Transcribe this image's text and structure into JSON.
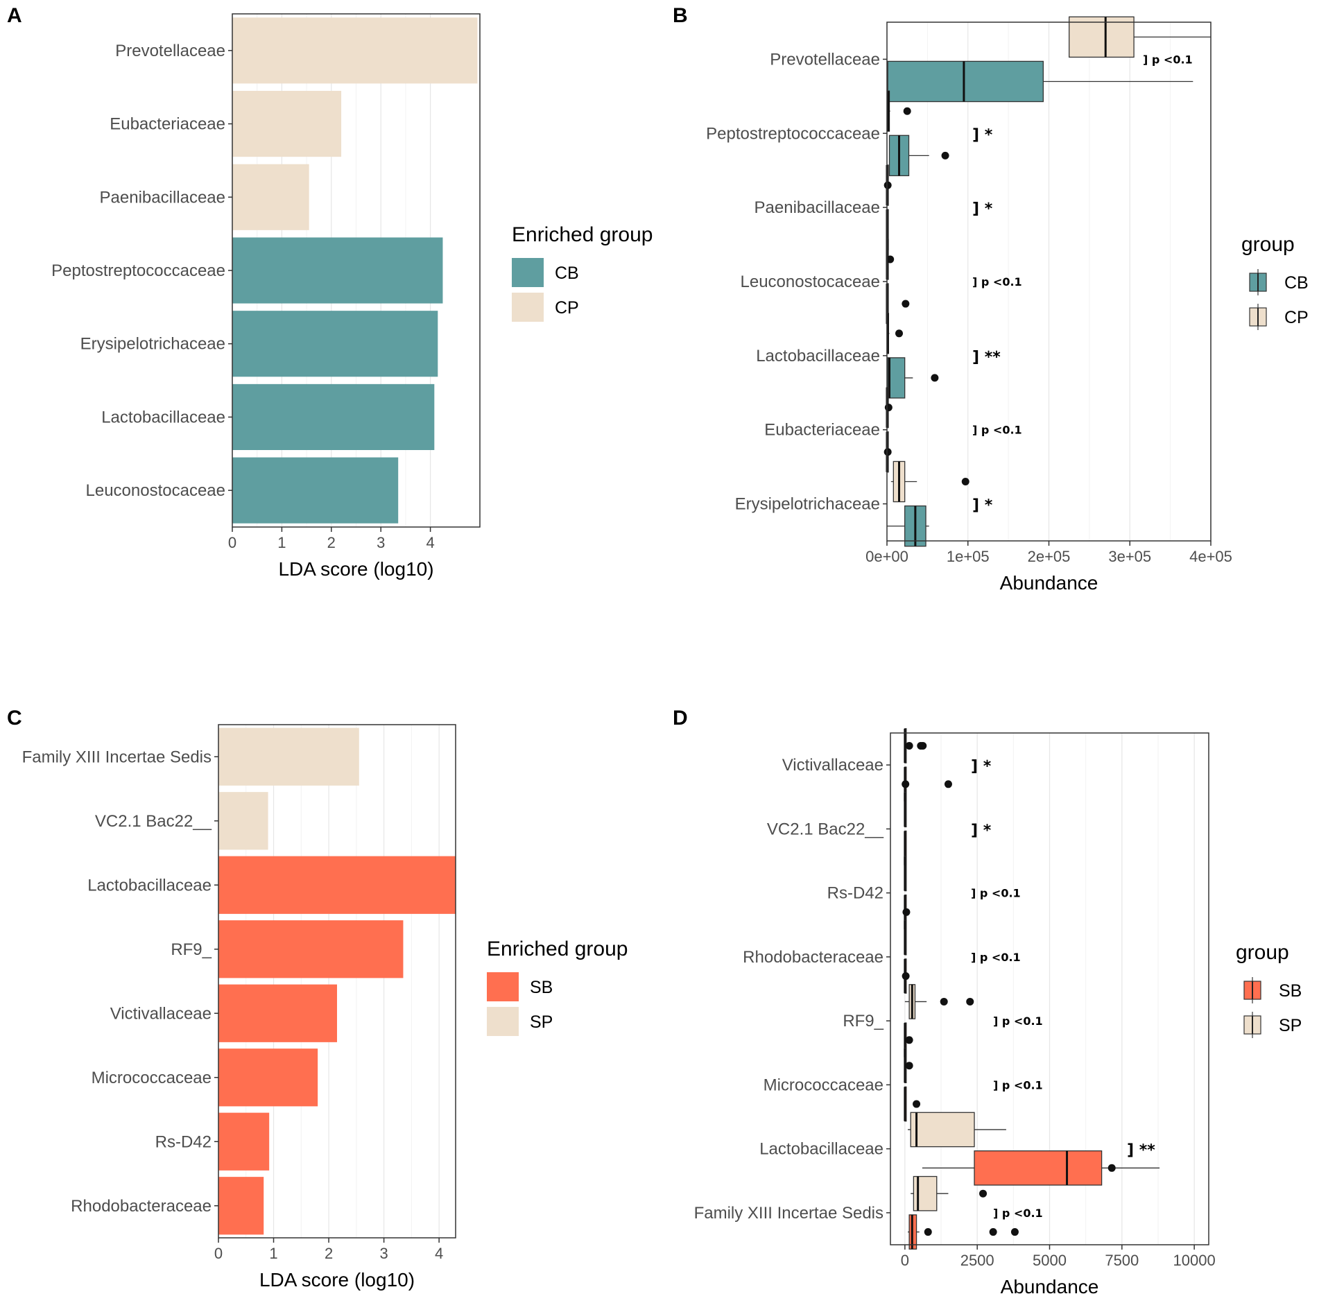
{
  "colors": {
    "CB": "#5f9ea0",
    "CP": "#eedfcc",
    "SB": "#ff6f50",
    "SP": "#eedfcc"
  },
  "chart_data": [
    {
      "panel": "A",
      "type": "bar",
      "orientation": "horizontal",
      "xlabel": "LDA score (log10)",
      "xlim": [
        0,
        5
      ],
      "xticks": [
        0,
        1,
        2,
        3,
        4
      ],
      "legend": {
        "title": "Enriched group",
        "entries": [
          "CB",
          "CP"
        ]
      },
      "categories": [
        "Prevotellaceae",
        "Eubacteriaceae",
        "Paenibacillaceae",
        "Peptostreptococcaceae",
        "Erysipelotrichaceae",
        "Lactobacillaceae",
        "Leuconostocaceae"
      ],
      "values": [
        4.95,
        2.2,
        1.55,
        4.25,
        4.15,
        4.08,
        3.35
      ],
      "groups": [
        "CP",
        "CP",
        "CP",
        "CB",
        "CB",
        "CB",
        "CB"
      ]
    },
    {
      "panel": "B",
      "type": "box",
      "orientation": "horizontal",
      "xlabel": "Abundance",
      "xlim": [
        0,
        400000
      ],
      "xticks": [
        0,
        100000,
        200000,
        300000,
        400000
      ],
      "xtick_labels": [
        "0e+00",
        "1e+05",
        "2e+05",
        "3e+05",
        "4e+05"
      ],
      "legend": {
        "title": "group",
        "entries": [
          "CB",
          "CP"
        ]
      },
      "categories": [
        "Prevotellaceae",
        "Peptostreptococcaceae",
        "Paenibacillaceae",
        "Leuconostocaceae",
        "Lactobacillaceae",
        "Eubacteriaceae",
        "Erysipelotrichaceae"
      ],
      "significance": [
        "] p <0.1",
        "] *",
        "] *",
        "] p <0.1",
        "] **",
        "] p <0.1",
        "] *"
      ],
      "boxes": [
        {
          "cat": 0,
          "group": "CP",
          "whislo": 225000,
          "q1": 225000,
          "med": 270000,
          "q3": 305000,
          "whishi": 400000,
          "fliers": []
        },
        {
          "cat": 0,
          "group": "CB",
          "whislo": 0,
          "q1": 1000,
          "med": 95000,
          "q3": 193000,
          "whishi": 378000,
          "fliers": []
        },
        {
          "cat": 1,
          "group": "CP",
          "whislo": 0,
          "q1": 1000,
          "med": 2000,
          "q3": 3000,
          "whishi": 4000,
          "fliers": [
            25000
          ]
        },
        {
          "cat": 1,
          "group": "CB",
          "whislo": 3000,
          "q1": 3000,
          "med": 15000,
          "q3": 27000,
          "whishi": 52000,
          "fliers": [
            72000
          ]
        },
        {
          "cat": 2,
          "group": "CP",
          "whislo": 0,
          "q1": 0,
          "med": 0,
          "q3": 0,
          "whishi": 0,
          "fliers": [
            1000
          ]
        },
        {
          "cat": 2,
          "group": "CB",
          "whislo": 0,
          "q1": 0,
          "med": 0,
          "q3": 0,
          "whishi": 0,
          "fliers": []
        },
        {
          "cat": 3,
          "group": "CP",
          "whislo": 0,
          "q1": 0,
          "med": 0,
          "q3": 0,
          "whishi": 0,
          "fliers": [
            4000
          ]
        },
        {
          "cat": 3,
          "group": "CB",
          "whislo": 0,
          "q1": 0,
          "med": 0,
          "q3": 0,
          "whishi": 0,
          "fliers": [
            23000
          ]
        },
        {
          "cat": 4,
          "group": "CP",
          "whislo": 0,
          "q1": 0,
          "med": 1000,
          "q3": 2000,
          "whishi": 3000,
          "fliers": [
            15000
          ]
        },
        {
          "cat": 4,
          "group": "CB",
          "whislo": 0,
          "q1": 1000,
          "med": 3000,
          "q3": 22000,
          "whishi": 32000,
          "fliers": [
            59000
          ]
        },
        {
          "cat": 5,
          "group": "CP",
          "whislo": 0,
          "q1": 0,
          "med": 0,
          "q3": 0,
          "whishi": 0,
          "fliers": [
            2000
          ]
        },
        {
          "cat": 5,
          "group": "CB",
          "whislo": 0,
          "q1": 0,
          "med": 0,
          "q3": 0,
          "whishi": 0,
          "fliers": [
            1000
          ]
        },
        {
          "cat": 6,
          "group": "CP",
          "whislo": 5000,
          "q1": 8000,
          "med": 15000,
          "q3": 22000,
          "whishi": 37000,
          "fliers": [
            97000
          ]
        },
        {
          "cat": 6,
          "group": "CB",
          "whislo": 0,
          "q1": 22000,
          "med": 35000,
          "q3": 48000,
          "whishi": 52000,
          "fliers": []
        }
      ]
    },
    {
      "panel": "C",
      "type": "bar",
      "orientation": "horizontal",
      "xlabel": "LDA score (log10)",
      "xlim": [
        0,
        4.3
      ],
      "xticks": [
        0,
        1,
        2,
        3,
        4
      ],
      "legend": {
        "title": "Enriched group",
        "entries": [
          "SB",
          "SP"
        ]
      },
      "categories": [
        "Family XIII Incertae Sedis",
        "VC2.1 Bac22__",
        "Lactobacillaceae",
        "RF9_",
        "Victivallaceae",
        "Micrococcaceae",
        "Rs-D42",
        "Rhodobacteraceae"
      ],
      "values": [
        2.55,
        0.9,
        4.3,
        3.35,
        2.15,
        1.8,
        0.92,
        0.82
      ],
      "groups": [
        "SP",
        "SP",
        "SB",
        "SB",
        "SB",
        "SB",
        "SB",
        "SB"
      ]
    },
    {
      "panel": "D",
      "type": "box",
      "orientation": "horizontal",
      "xlabel": "Abundance",
      "xlim": [
        -500,
        10500
      ],
      "xticks": [
        0,
        2500,
        5000,
        7500,
        10000
      ],
      "xtick_labels": [
        "0",
        "2500",
        "5000",
        "7500",
        "10000"
      ],
      "legend": {
        "title": "group",
        "entries": [
          "SB",
          "SP"
        ]
      },
      "categories": [
        "Victivallaceae",
        "VC2.1 Bac22__",
        "Rs-D42",
        "Rhodobacteraceae",
        "RF9_",
        "Micrococcaceae",
        "Lactobacillaceae",
        "Family XIII Incertae Sedis"
      ],
      "significance": [
        "] *",
        "] *",
        "] p <0.1",
        "] p <0.1",
        "] p <0.1",
        "] p <0.1",
        "] **",
        "] p <0.1"
      ],
      "boxes": [
        {
          "cat": 0,
          "group": "SP",
          "whislo": 0,
          "q1": 0,
          "med": 0,
          "q3": 0,
          "whishi": 0,
          "fliers": [
            150,
            550,
            620
          ]
        },
        {
          "cat": 0,
          "group": "SB",
          "whislo": 0,
          "q1": 0,
          "med": 0,
          "q3": 0,
          "whishi": 0,
          "fliers": [
            20,
            1500
          ]
        },
        {
          "cat": 1,
          "group": "SP",
          "whislo": 0,
          "q1": 0,
          "med": 0,
          "q3": 0,
          "whishi": 0,
          "fliers": []
        },
        {
          "cat": 1,
          "group": "SB",
          "whislo": 0,
          "q1": 0,
          "med": 0,
          "q3": 0,
          "whishi": 0,
          "fliers": []
        },
        {
          "cat": 2,
          "group": "SP",
          "whislo": 0,
          "q1": 0,
          "med": 0,
          "q3": 0,
          "whishi": 0,
          "fliers": []
        },
        {
          "cat": 2,
          "group": "SB",
          "whislo": 0,
          "q1": 0,
          "med": 0,
          "q3": 0,
          "whishi": 0,
          "fliers": [
            50
          ]
        },
        {
          "cat": 3,
          "group": "SP",
          "whislo": 0,
          "q1": 0,
          "med": 0,
          "q3": 0,
          "whishi": 0,
          "fliers": []
        },
        {
          "cat": 3,
          "group": "SB",
          "whislo": 0,
          "q1": 0,
          "med": 0,
          "q3": 0,
          "whishi": 0,
          "fliers": [
            30
          ]
        },
        {
          "cat": 4,
          "group": "SP",
          "whislo": 0,
          "q1": 150,
          "med": 250,
          "q3": 350,
          "whishi": 750,
          "fliers": [
            1350,
            2250
          ]
        },
        {
          "cat": 4,
          "group": "SB",
          "whislo": 0,
          "q1": 0,
          "med": 0,
          "q3": 0,
          "whishi": 0,
          "fliers": [
            150
          ]
        },
        {
          "cat": 5,
          "group": "SP",
          "whislo": 0,
          "q1": 0,
          "med": 0,
          "q3": 0,
          "whishi": 0,
          "fliers": [
            150
          ]
        },
        {
          "cat": 5,
          "group": "SB",
          "whislo": 0,
          "q1": 0,
          "med": 0,
          "q3": 0,
          "whishi": 0,
          "fliers": [
            400
          ]
        },
        {
          "cat": 6,
          "group": "SP",
          "whislo": 100,
          "q1": 200,
          "med": 400,
          "q3": 2400,
          "whishi": 3500,
          "fliers": []
        },
        {
          "cat": 6,
          "group": "SB",
          "whislo": 600,
          "q1": 2400,
          "med": 5600,
          "q3": 6800,
          "whishi": 8800,
          "fliers": [
            7150
          ]
        },
        {
          "cat": 7,
          "group": "SP",
          "whislo": 200,
          "q1": 300,
          "med": 450,
          "q3": 1100,
          "whishi": 1500,
          "fliers": [
            2700
          ]
        },
        {
          "cat": 7,
          "group": "SB",
          "whislo": 100,
          "q1": 150,
          "med": 250,
          "q3": 400,
          "whishi": 500,
          "fliers": [
            800,
            3050,
            3800
          ]
        }
      ]
    }
  ]
}
